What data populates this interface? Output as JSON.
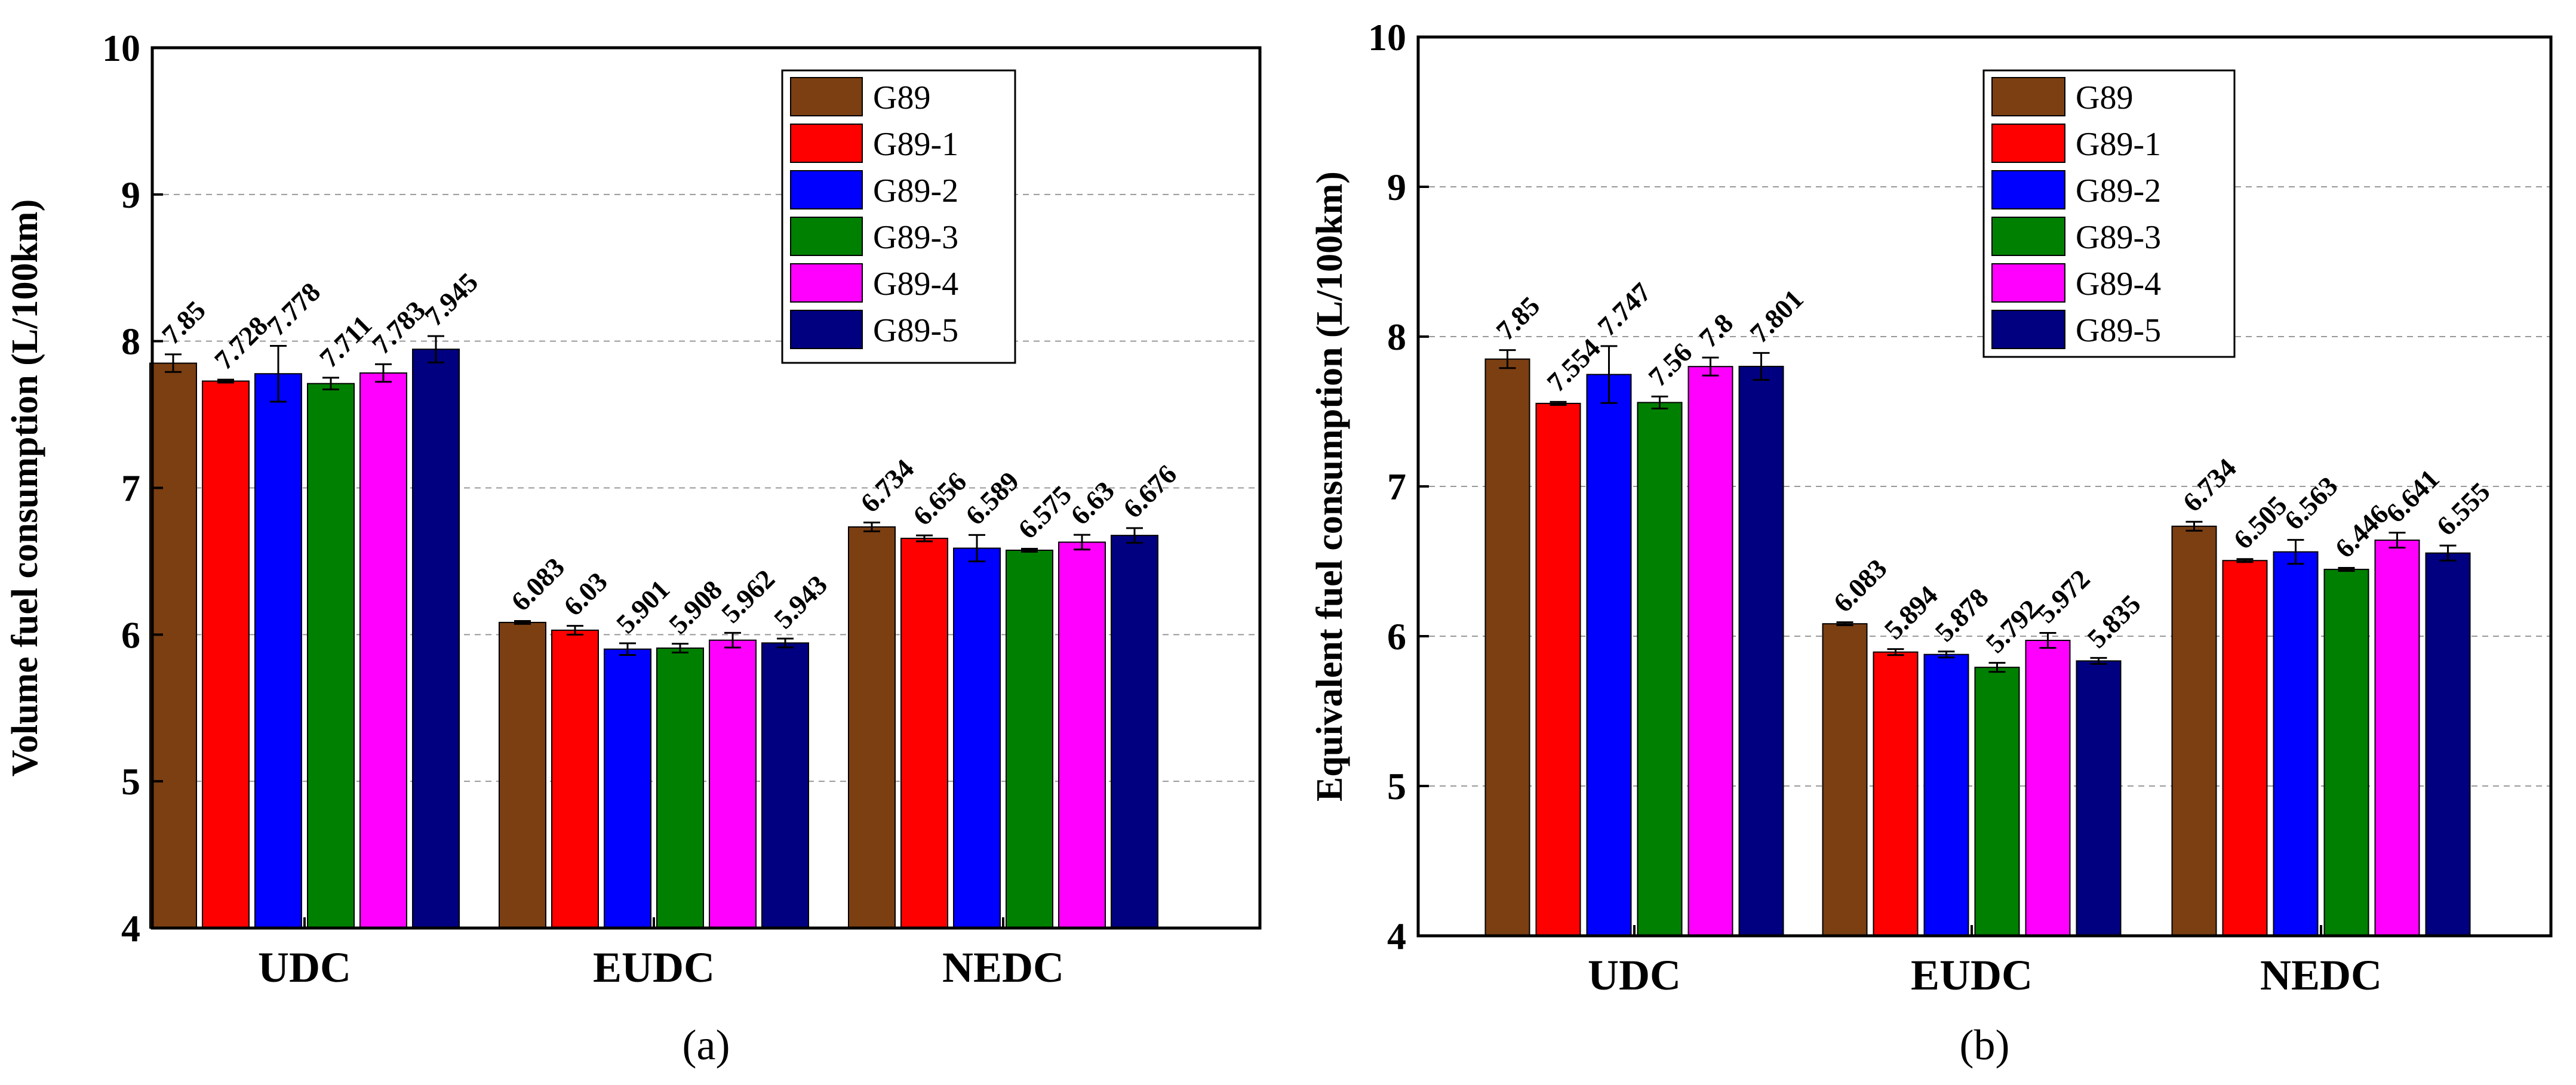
{
  "figure": {
    "series_colors": {
      "G89": "#7B3F12",
      "G89-1": "#FF0000",
      "G89-2": "#0000FF",
      "G89-3": "#008000",
      "G89-4": "#FF00FF",
      "G89-5": "#000080"
    },
    "bar_stroke": "#000000",
    "grid_color": "#999999"
  },
  "chart_data": [
    {
      "type": "bar",
      "panel_label": "(a)",
      "title": "",
      "xlabel": "",
      "ylabel": "Volume fuel consumption (L/100km)",
      "ylim": [
        4,
        10
      ],
      "yticks": [
        "4",
        "5",
        "6",
        "7",
        "8",
        "9",
        "10"
      ],
      "grid": true,
      "legend_placement": "top-right",
      "categories": [
        "UDC",
        "EUDC",
        "NEDC"
      ],
      "series": [
        {
          "name": "G89",
          "values": [
            7.85,
            6.083,
            6.734
          ],
          "labels": [
            "7.85",
            "6.083",
            "6.734"
          ],
          "errors": [
            0.06,
            0.01,
            0.03
          ]
        },
        {
          "name": "G89-1",
          "values": [
            7.728,
            6.03,
            6.656
          ],
          "labels": [
            "7.728",
            "6.03",
            "6.656"
          ],
          "errors": [
            0.01,
            0.03,
            0.02
          ]
        },
        {
          "name": "G89-2",
          "values": [
            7.778,
            5.901,
            6.589
          ],
          "labels": [
            "7.778",
            "5.901",
            "6.589"
          ],
          "errors": [
            0.19,
            0.04,
            0.09
          ]
        },
        {
          "name": "G89-3",
          "values": [
            7.711,
            5.908,
            6.575
          ],
          "labels": [
            "7.711",
            "5.908",
            "6.575"
          ],
          "errors": [
            0.04,
            0.03,
            0.01
          ]
        },
        {
          "name": "G89-4",
          "values": [
            7.783,
            5.962,
            6.63
          ],
          "labels": [
            "7.783",
            "5.962",
            "6.63"
          ],
          "errors": [
            0.06,
            0.05,
            0.05
          ]
        },
        {
          "name": "G89-5",
          "values": [
            7.945,
            5.943,
            6.676
          ],
          "labels": [
            "7.945",
            "5.943",
            "6.676"
          ],
          "errors": [
            0.09,
            0.03,
            0.05
          ]
        }
      ]
    },
    {
      "type": "bar",
      "panel_label": "(b)",
      "title": "",
      "xlabel": "",
      "ylabel": "Equivalent fuel consumption (L/100km)",
      "ylim": [
        4,
        10
      ],
      "yticks": [
        "4",
        "5",
        "6",
        "7",
        "8",
        "9",
        "10"
      ],
      "grid": true,
      "legend_placement": "top-right",
      "categories": [
        "UDC",
        "EUDC",
        "NEDC"
      ],
      "series": [
        {
          "name": "G89",
          "values": [
            7.85,
            6.083,
            6.734
          ],
          "labels": [
            "7.85",
            "6.083",
            "6.734"
          ],
          "errors": [
            0.06,
            0.01,
            0.03
          ]
        },
        {
          "name": "G89-1",
          "values": [
            7.554,
            5.894,
            6.505
          ],
          "labels": [
            "7.554",
            "5.894",
            "6.505"
          ],
          "errors": [
            0.01,
            0.02,
            0.01
          ]
        },
        {
          "name": "G89-2",
          "values": [
            7.747,
            5.878,
            6.563
          ],
          "labels": [
            "7.747",
            "5.878",
            "6.563"
          ],
          "errors": [
            0.19,
            0.02,
            0.08
          ]
        },
        {
          "name": "G89-3",
          "values": [
            7.56,
            5.792,
            6.446
          ],
          "labels": [
            "7.56",
            "5.792",
            "6.446"
          ],
          "errors": [
            0.04,
            0.03,
            0.01
          ]
        },
        {
          "name": "G89-4",
          "values": [
            7.8,
            5.972,
            6.641
          ],
          "labels": [
            "7.8",
            "5.972",
            "6.641"
          ],
          "errors": [
            0.06,
            0.05,
            0.05
          ]
        },
        {
          "name": "G89-5",
          "values": [
            7.801,
            5.835,
            6.555
          ],
          "labels": [
            "7.801",
            "5.835",
            "6.555"
          ],
          "errors": [
            0.09,
            0.02,
            0.05
          ]
        }
      ]
    }
  ]
}
